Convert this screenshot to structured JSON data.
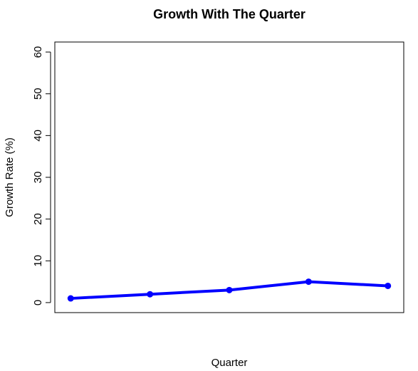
{
  "chart_data": {
    "type": "line",
    "title": "Growth With The Quarter",
    "xlabel": "Quarter",
    "ylabel": "Growth Rate (%)",
    "x": [
      1,
      2,
      3,
      4,
      5
    ],
    "xlim": [
      0.8,
      5.2
    ],
    "ylim": [
      -2.4,
      62.4
    ],
    "yticks": [
      0,
      10,
      20,
      30,
      40,
      50,
      60
    ],
    "grid": false,
    "legend": "none",
    "series": [
      {
        "values": [
          1,
          2,
          3,
          5,
          4
        ],
        "color": "#0000ff"
      }
    ]
  }
}
